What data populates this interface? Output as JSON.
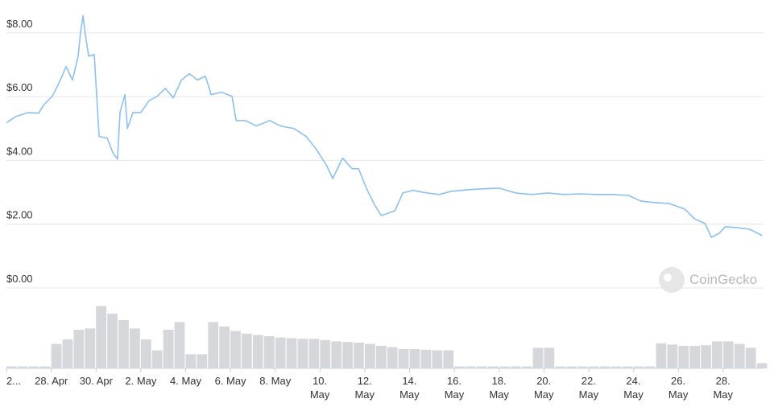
{
  "chart_data": [
    {
      "type": "line",
      "x": [
        0,
        0.43,
        0.97,
        1.44,
        1.69,
        2.05,
        2.41,
        2.66,
        2.95,
        3.2,
        3.31,
        3.42,
        3.53,
        3.67,
        3.92,
        4.03,
        4.14,
        4.5,
        4.75,
        4.96,
        5.07,
        5.29,
        5.4,
        5.65,
        6.0,
        6.37,
        6.73,
        7.09,
        7.45,
        7.81,
        8.17,
        8.53,
        8.88,
        9.14,
        9.6,
        10.07,
        10.25,
        10.68,
        11.15,
        11.76,
        12.23,
        12.84,
        13.38,
        13.81,
        14.28,
        14.57,
        15.0,
        15.43,
        15.72,
        16.08,
        16.44,
        16.73,
        17.34,
        17.7,
        18.13,
        18.78,
        19.32,
        19.86,
        20.58,
        21.29,
        22.0,
        22.73,
        23.45,
        24.17,
        24.89,
        25.61,
        26.33,
        27.05,
        27.77,
        28.31,
        28.85,
        29.57,
        30.29,
        30.72,
        31.19,
        31.47,
        31.83,
        32.09,
        32.63,
        33.17,
        33.53,
        33.74
      ],
      "values": [
        5.18,
        5.38,
        5.5,
        5.48,
        5.76,
        6.01,
        6.52,
        6.94,
        6.52,
        7.27,
        8.03,
        8.54,
        7.9,
        7.27,
        7.32,
        6.01,
        4.75,
        4.7,
        4.24,
        4.04,
        5.5,
        6.06,
        5.0,
        5.5,
        5.5,
        5.88,
        6.01,
        6.26,
        5.96,
        6.52,
        6.72,
        6.52,
        6.64,
        6.06,
        6.14,
        6.01,
        5.25,
        5.25,
        5.08,
        5.25,
        5.08,
        5.0,
        4.75,
        4.37,
        3.86,
        3.43,
        4.07,
        3.74,
        3.74,
        3.11,
        2.6,
        2.27,
        2.42,
        2.98,
        3.06,
        2.98,
        2.93,
        3.03,
        3.08,
        3.11,
        3.13,
        2.98,
        2.93,
        2.98,
        2.93,
        2.95,
        2.93,
        2.93,
        2.9,
        2.73,
        2.68,
        2.65,
        2.47,
        2.17,
        2.02,
        1.59,
        1.72,
        1.92,
        1.89,
        1.84,
        1.72,
        1.64
      ],
      "color": "#8cc0ef",
      "xlim": [
        0,
        33.8
      ],
      "xticks": [
        {
          "value": 0,
          "label": "2..."
        },
        {
          "value": 2,
          "label": "28. Apr"
        },
        {
          "value": 4,
          "label": "30. Apr"
        },
        {
          "value": 6,
          "label": "2. May"
        },
        {
          "value": 8,
          "label": "4. May"
        },
        {
          "value": 10,
          "label": "6. May"
        },
        {
          "value": 12,
          "label": "8. May"
        },
        {
          "value": 14,
          "label": "10.\nMay"
        },
        {
          "value": 16,
          "label": "12.\nMay"
        },
        {
          "value": 18,
          "label": "14.\nMay"
        },
        {
          "value": 20,
          "label": "16.\nMay"
        },
        {
          "value": 22,
          "label": "18.\nMay"
        },
        {
          "value": 24,
          "label": "20.\nMay"
        },
        {
          "value": 26,
          "label": "22.\nMay"
        },
        {
          "value": 28,
          "label": "24.\nMay"
        },
        {
          "value": 30,
          "label": "26.\nMay"
        },
        {
          "value": 32,
          "label": "28.\nMay"
        }
      ],
      "ylim": [
        0,
        8.5
      ],
      "yticks": [
        {
          "value": 0,
          "label": "$0.00"
        },
        {
          "value": 2,
          "label": "$2.00"
        },
        {
          "value": 4,
          "label": "$4.00"
        },
        {
          "value": 6,
          "label": "$6.00"
        },
        {
          "value": 8,
          "label": "$8.00"
        }
      ],
      "grid": true,
      "watermark": "CoinGecko"
    },
    {
      "type": "bar",
      "x": [
        0,
        0.5,
        1,
        1.5,
        2,
        2.5,
        3,
        3.5,
        4,
        4.5,
        5,
        5.5,
        6,
        6.5,
        7,
        7.5,
        8,
        8.5,
        9,
        9.5,
        10,
        10.5,
        11,
        11.5,
        12,
        12.5,
        13,
        13.5,
        14,
        14.5,
        15,
        15.5,
        16,
        16.5,
        17,
        17.5,
        18,
        18.5,
        19,
        19.5,
        20,
        20.5,
        21,
        21.5,
        22,
        22.5,
        23,
        23.5,
        24,
        24.5,
        25,
        25.5,
        26,
        26.5,
        27,
        27.5,
        28,
        28.5,
        29,
        29.5,
        30,
        30.5,
        31,
        31.5,
        32,
        32.5,
        33,
        33.5
      ],
      "values": [
        3,
        3,
        3,
        3,
        38,
        45,
        60,
        62,
        97,
        85,
        75,
        62,
        45,
        28,
        60,
        72,
        22,
        22,
        72,
        65,
        58,
        54,
        52,
        50,
        48,
        47,
        46,
        46,
        44,
        42,
        41,
        40,
        38,
        35,
        33,
        30,
        30,
        29,
        28,
        28,
        3,
        3,
        3,
        3,
        3,
        3,
        3,
        32,
        32,
        3,
        3,
        3,
        3,
        3,
        3,
        3,
        3,
        3,
        39,
        37,
        35,
        35,
        36,
        42,
        42,
        38,
        32,
        8
      ],
      "color": "#d5d7db",
      "xlim": [
        0,
        33.8
      ],
      "ylim": [
        0,
        100
      ]
    }
  ]
}
